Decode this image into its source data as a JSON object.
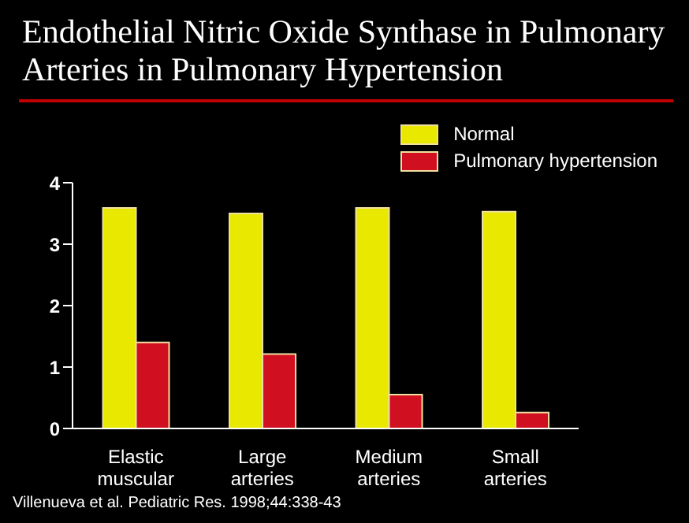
{
  "chart_data": {
    "type": "bar",
    "title": "Endothelial Nitric Oxide Synthase in Pulmonary Arteries in Pulmonary Hypertension",
    "categories": [
      "Elastic muscular",
      "Large arteries",
      "Medium arteries",
      "Small arteries"
    ],
    "series": [
      {
        "name": "Normal",
        "color": "#e8e800",
        "values": [
          3.59,
          3.5,
          3.59,
          3.53
        ]
      },
      {
        "name": "Pulmonary hypertension",
        "color": "#d01020",
        "values": [
          1.4,
          1.21,
          0.55,
          0.26
        ]
      }
    ],
    "ylim": [
      0,
      4
    ],
    "yticks": [
      0,
      1,
      2,
      3,
      4
    ],
    "grid": false,
    "legend": "top right",
    "annotations": [
      "Villenueva et al. Pediatric Res. 1998;44:338-43"
    ]
  }
}
